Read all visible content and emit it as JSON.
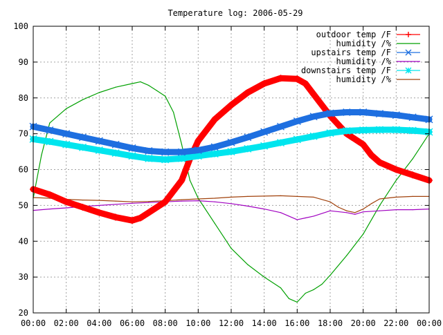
{
  "chart_data": {
    "type": "line",
    "title": "Temperature log: 2006-05-29",
    "xlabel": "",
    "ylabel": "",
    "x_ticks": [
      "00:00",
      "02:00",
      "04:00",
      "06:00",
      "08:00",
      "10:00",
      "12:00",
      "14:00",
      "16:00",
      "18:00",
      "20:00",
      "22:00",
      "00:00"
    ],
    "xlim": [
      0,
      24
    ],
    "ylim": [
      20,
      100
    ],
    "y_ticks": [
      20,
      30,
      40,
      50,
      60,
      70,
      80,
      90,
      100
    ],
    "grid": true,
    "legend_position": "top-right",
    "series": [
      {
        "name": "outdoor temp /F",
        "color": "#ff0000",
        "marker": "plus",
        "x": [
          0,
          1,
          2,
          3,
          4,
          5,
          6,
          6.5,
          7,
          8,
          9,
          9.5,
          10,
          11,
          12,
          13,
          14,
          15,
          16,
          16.5,
          17,
          18,
          19,
          20,
          20.5,
          21,
          22,
          23,
          24
        ],
        "y": [
          54.5,
          53,
          51,
          49.5,
          48,
          46.7,
          45.8,
          46.5,
          48,
          51,
          57,
          63,
          68,
          74,
          78,
          81.5,
          84,
          85.5,
          85.3,
          84,
          81,
          75,
          70,
          67,
          64,
          62,
          60,
          58.5,
          57
        ]
      },
      {
        "name": "humidity /%",
        "color": "#00a000",
        "marker": "none",
        "x": [
          0,
          0.5,
          1,
          2,
          3,
          4,
          5,
          6,
          6.5,
          7,
          7.5,
          8,
          8.5,
          9,
          9.5,
          10,
          11,
          12,
          13,
          14,
          15,
          15.5,
          16,
          16.5,
          17,
          17.5,
          18,
          19,
          20,
          21,
          22,
          23,
          23.5,
          24
        ],
        "y": [
          52,
          64,
          73,
          77,
          79.5,
          81.5,
          83,
          84,
          84.5,
          83.5,
          82,
          80.5,
          76,
          67,
          57,
          52,
          45,
          38,
          33.5,
          30,
          27,
          24,
          23,
          25.5,
          26.5,
          28,
          30.5,
          36,
          42,
          50,
          57,
          63,
          66.5,
          70
        ]
      },
      {
        "name": "upstairs temp /F",
        "color": "#1e6fe0",
        "marker": "x",
        "x": [
          0,
          1,
          2,
          3,
          4,
          5,
          6,
          7,
          8,
          9,
          10,
          11,
          12,
          13,
          14,
          15,
          16,
          17,
          18,
          19,
          20,
          21,
          22,
          23,
          24
        ],
        "y": [
          72,
          71,
          70,
          69,
          68,
          67,
          66,
          65.2,
          64.9,
          64.9,
          65.4,
          66.3,
          67.6,
          69,
          70.5,
          72,
          73.5,
          74.8,
          75.7,
          76,
          76,
          75.6,
          75.2,
          74.6,
          74
        ]
      },
      {
        "name": "humidity /%",
        "color": "#a000c0",
        "marker": "none",
        "x": [
          0,
          1,
          2,
          3,
          4,
          5,
          6,
          7,
          8,
          9,
          10,
          11,
          12,
          13,
          14,
          15,
          15.5,
          16,
          16.5,
          17,
          18,
          19,
          19.5,
          20,
          21,
          22,
          23,
          24
        ],
        "y": [
          48.6,
          49,
          49.3,
          49.7,
          50,
          50.3,
          50.6,
          50.8,
          51,
          51.2,
          51.3,
          51,
          50.5,
          49.8,
          49,
          48,
          47,
          46,
          46.5,
          47,
          48.5,
          48,
          47.5,
          48.2,
          48.5,
          48.8,
          48.8,
          49
        ]
      },
      {
        "name": "downstairs temp /F",
        "color": "#00e5ee",
        "marker": "star",
        "x": [
          0,
          1,
          2,
          3,
          4,
          5,
          6,
          7,
          8,
          9,
          10,
          11,
          12,
          13,
          14,
          15,
          16,
          17,
          18,
          19,
          20,
          21,
          22,
          23,
          24
        ],
        "y": [
          68.5,
          67.8,
          67,
          66.2,
          65.4,
          64.6,
          63.8,
          63.1,
          62.8,
          63.1,
          63.8,
          64.4,
          65,
          65.8,
          66.6,
          67.5,
          68.4,
          69.3,
          70.2,
          70.8,
          71,
          71.1,
          71.1,
          70.9,
          70.5
        ]
      },
      {
        "name": "humidity /%",
        "color": "#a0400a",
        "marker": "none",
        "x": [
          0,
          1,
          2,
          3,
          4,
          5,
          6,
          7,
          8,
          9,
          10,
          11,
          12,
          13,
          14,
          15,
          16,
          17,
          18,
          18.5,
          19,
          19.5,
          20,
          20.5,
          21,
          22,
          23,
          24
        ],
        "y": [
          52.2,
          52,
          51.7,
          51.5,
          51.4,
          51.2,
          51,
          51.1,
          51.3,
          51.6,
          51.8,
          52,
          52.3,
          52.5,
          52.6,
          52.7,
          52.5,
          52.3,
          51,
          49.5,
          48.5,
          48,
          49,
          50.5,
          51.8,
          52.3,
          52.5,
          52.5
        ]
      }
    ]
  }
}
